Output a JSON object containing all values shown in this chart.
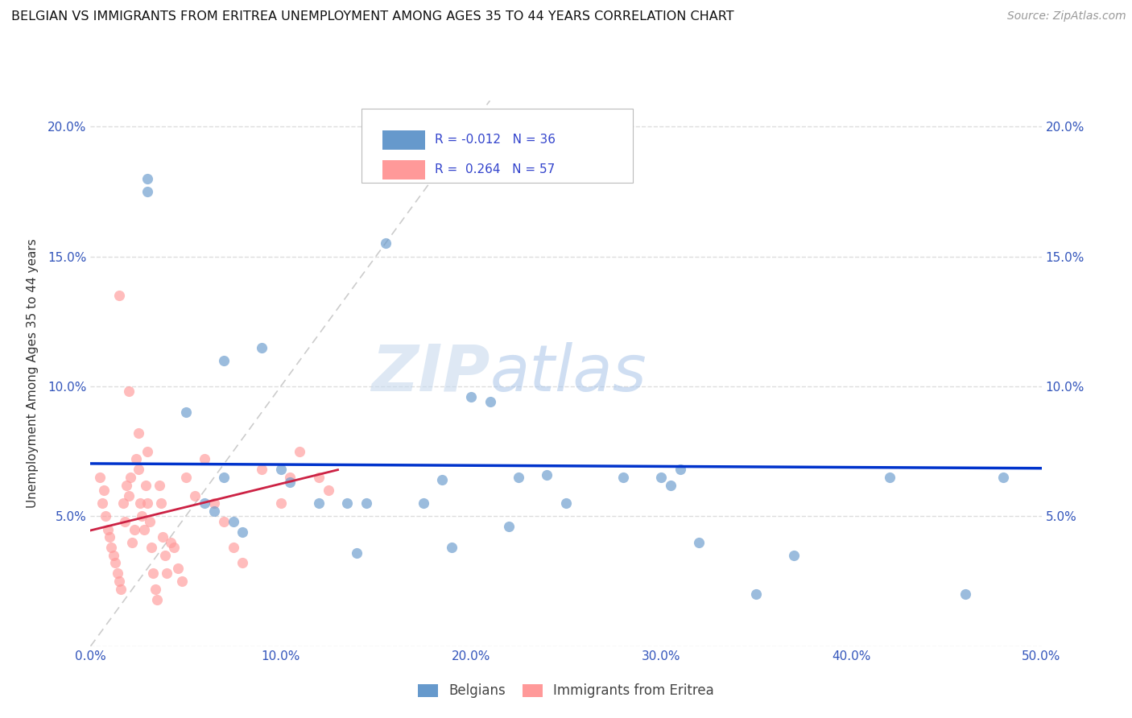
{
  "title": "BELGIAN VS IMMIGRANTS FROM ERITREA UNEMPLOYMENT AMONG AGES 35 TO 44 YEARS CORRELATION CHART",
  "source": "Source: ZipAtlas.com",
  "ylabel": "Unemployment Among Ages 35 to 44 years",
  "xlim": [
    0.0,
    0.5
  ],
  "ylim": [
    0.0,
    0.21
  ],
  "xticks": [
    0.0,
    0.1,
    0.2,
    0.3,
    0.4,
    0.5
  ],
  "xticklabels": [
    "0.0%",
    "10.0%",
    "20.0%",
    "30.0%",
    "40.0%",
    "50.0%"
  ],
  "yticks": [
    0.0,
    0.05,
    0.1,
    0.15,
    0.2
  ],
  "yticklabels": [
    "",
    "5.0%",
    "10.0%",
    "15.0%",
    "20.0%"
  ],
  "color_belgian": "#6699CC",
  "color_eritrea": "#FF9999",
  "trendline_belgian_color": "#0033CC",
  "trendline_eritrea_color": "#CC2244",
  "diagonal_color": "#CCCCCC",
  "watermark_zip": "ZIP",
  "watermark_atlas": "atlas",
  "belgian_x": [
    0.03,
    0.03,
    0.05,
    0.07,
    0.07,
    0.09,
    0.1,
    0.105,
    0.12,
    0.135,
    0.14,
    0.145,
    0.155,
    0.175,
    0.185,
    0.19,
    0.2,
    0.21,
    0.22,
    0.225,
    0.24,
    0.25,
    0.28,
    0.3,
    0.305,
    0.31,
    0.32,
    0.35,
    0.37,
    0.42,
    0.46,
    0.48,
    0.06,
    0.065,
    0.075,
    0.08
  ],
  "belgian_y": [
    0.175,
    0.18,
    0.09,
    0.11,
    0.065,
    0.115,
    0.068,
    0.063,
    0.055,
    0.055,
    0.036,
    0.055,
    0.155,
    0.055,
    0.064,
    0.038,
    0.096,
    0.094,
    0.046,
    0.065,
    0.066,
    0.055,
    0.065,
    0.065,
    0.062,
    0.068,
    0.04,
    0.02,
    0.035,
    0.065,
    0.02,
    0.065,
    0.055,
    0.052,
    0.048,
    0.044
  ],
  "eritrea_x": [
    0.005,
    0.006,
    0.007,
    0.008,
    0.009,
    0.01,
    0.011,
    0.012,
    0.013,
    0.014,
    0.015,
    0.016,
    0.017,
    0.018,
    0.019,
    0.02,
    0.021,
    0.022,
    0.023,
    0.024,
    0.025,
    0.026,
    0.027,
    0.028,
    0.029,
    0.03,
    0.031,
    0.032,
    0.033,
    0.034,
    0.035,
    0.036,
    0.037,
    0.038,
    0.039,
    0.04,
    0.042,
    0.044,
    0.046,
    0.048,
    0.05,
    0.055,
    0.06,
    0.065,
    0.07,
    0.075,
    0.08,
    0.09,
    0.1,
    0.105,
    0.11,
    0.12,
    0.125,
    0.015,
    0.02,
    0.025,
    0.03
  ],
  "eritrea_y": [
    0.065,
    0.055,
    0.06,
    0.05,
    0.045,
    0.042,
    0.038,
    0.035,
    0.032,
    0.028,
    0.025,
    0.022,
    0.055,
    0.048,
    0.062,
    0.058,
    0.065,
    0.04,
    0.045,
    0.072,
    0.068,
    0.055,
    0.05,
    0.045,
    0.062,
    0.055,
    0.048,
    0.038,
    0.028,
    0.022,
    0.018,
    0.062,
    0.055,
    0.042,
    0.035,
    0.028,
    0.04,
    0.038,
    0.03,
    0.025,
    0.065,
    0.058,
    0.072,
    0.055,
    0.048,
    0.038,
    0.032,
    0.068,
    0.055,
    0.065,
    0.075,
    0.065,
    0.06,
    0.135,
    0.098,
    0.082,
    0.075
  ],
  "background_color": "#FFFFFF",
  "grid_color": "#DDDDDD",
  "r_belgian": "-0.012",
  "n_belgian": "36",
  "r_eritrea": "0.264",
  "n_eritrea": "57"
}
